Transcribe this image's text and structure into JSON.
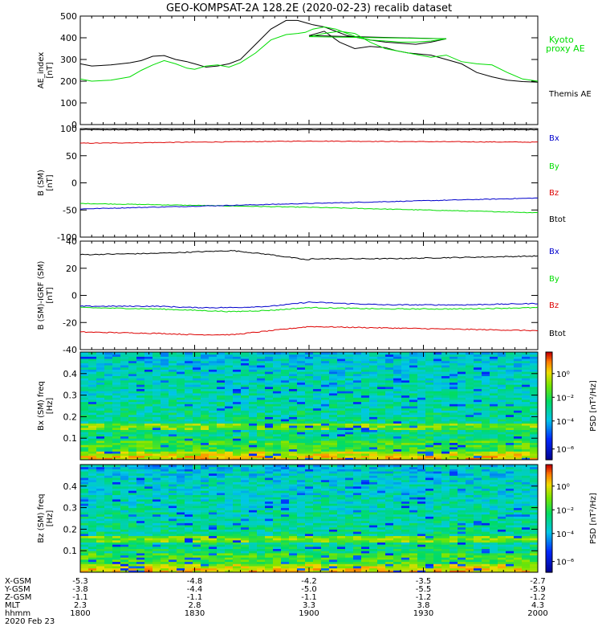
{
  "title": "GEO-KOMPSAT-2A 128.2E (2020-02-23) recalib dataset",
  "colors": {
    "black": "#000000",
    "green": "#00dd00",
    "red": "#dd0000",
    "blue": "#0000cc"
  },
  "chart_data": [
    {
      "type": "line",
      "ylabel": "AE_index [nT]",
      "ylim": [
        0,
        500
      ],
      "yticks": [
        0,
        100,
        200,
        300,
        400,
        500
      ],
      "series": [
        {
          "name": "Themis AE",
          "color": "black",
          "x": [
            1800,
            1803,
            1808,
            1813,
            1816,
            1819,
            1822,
            1825,
            1828,
            1829,
            1830,
            1833,
            1836,
            1839,
            1842,
            1846,
            1850,
            1854,
            1857,
            1859,
            1861,
            1864,
            1867,
            1870,
            1873,
            1876,
            1880,
            1884,
            1888,
            1892,
            1896,
            1900,
            1904,
            1908,
            1912,
            1916,
            1920,
            1923,
            1926,
            1929,
            1932,
            1936,
            1940,
            1944,
            1948,
            1952,
            1956,
            1960,
            2000
          ],
          "values": [
            280,
            270,
            275,
            285,
            295,
            315,
            318,
            300,
            290,
            285,
            280,
            265,
            270,
            280,
            300,
            370,
            440,
            480,
            480,
            470,
            460,
            450,
            430,
            410,
            400,
            390,
            380,
            375,
            370,
            380,
            395,
            410,
            430,
            380,
            350,
            360,
            355,
            340,
            330,
            325,
            320,
            300,
            280,
            240,
            220,
            205,
            198,
            195,
            195
          ]
        },
        {
          "name": "Kyoto proxy AE",
          "color": "green",
          "x": [
            1800,
            1803,
            1808,
            1813,
            1816,
            1819,
            1822,
            1825,
            1828,
            1830,
            1833,
            1836,
            1839,
            1842,
            1846,
            1850,
            1854,
            1857,
            1859,
            1861,
            1864,
            1867,
            1870,
            1873,
            1876,
            1880,
            1884,
            1888,
            1892,
            1896,
            1900,
            1904,
            1908,
            1912,
            1916,
            1920,
            1923,
            1926,
            1929,
            1932,
            1936,
            1940,
            1944,
            1948,
            1952,
            1956,
            1960,
            2000
          ],
          "values": [
            210,
            200,
            205,
            220,
            250,
            275,
            295,
            280,
            260,
            255,
            270,
            275,
            265,
            285,
            330,
            390,
            415,
            420,
            425,
            440,
            450,
            440,
            420,
            400,
            390,
            385,
            380,
            380,
            385,
            395,
            405,
            420,
            430,
            420,
            380,
            350,
            340,
            330,
            320,
            310,
            320,
            290,
            280,
            275,
            240,
            210,
            200,
            200
          ]
        }
      ]
    },
    {
      "type": "line",
      "ylabel": "B (SM) [nT]",
      "ylim": [
        -100,
        100
      ],
      "yticks": [
        -100,
        -50,
        0,
        50,
        100
      ],
      "series": [
        {
          "name": "Btot",
          "color": "black",
          "x": [
            1800,
            2000
          ],
          "values": [
            98,
            98
          ]
        },
        {
          "name": "Bz",
          "color": "red",
          "x": [
            1800,
            1900,
            2000
          ],
          "values": [
            73,
            77,
            75
          ]
        },
        {
          "name": "By",
          "color": "green",
          "x": [
            1800,
            1900,
            2000
          ],
          "values": [
            -38,
            -45,
            -55
          ]
        },
        {
          "name": "Bx",
          "color": "blue",
          "x": [
            1800,
            1900,
            2000
          ],
          "values": [
            -48,
            -38,
            -28
          ]
        }
      ]
    },
    {
      "type": "line",
      "ylabel": "B (SM)-IGRF (SM) [nT]",
      "ylim": [
        -40,
        40
      ],
      "yticks": [
        -40,
        -20,
        0,
        20,
        40
      ],
      "series": [
        {
          "name": "Btot",
          "color": "black",
          "x": [
            1800,
            1820,
            1830,
            1840,
            1850,
            1860,
            1900,
            1920,
            1940,
            1960,
            2000
          ],
          "values": [
            30,
            31,
            32,
            33,
            30,
            26,
            27,
            27,
            28,
            29,
            30
          ]
        },
        {
          "name": "Bz",
          "color": "red",
          "x": [
            1800,
            1820,
            1830,
            1840,
            1850,
            1860,
            1900,
            1920,
            1940,
            1960,
            2000
          ],
          "values": [
            -27,
            -28,
            -29,
            -29,
            -26,
            -23,
            -23,
            -24,
            -25,
            -26,
            -26
          ]
        },
        {
          "name": "By",
          "color": "green",
          "x": [
            1800,
            1820,
            1830,
            1840,
            1850,
            1860,
            1900,
            1920,
            1940,
            1960,
            2000
          ],
          "values": [
            -9,
            -10,
            -11,
            -12,
            -11,
            -9,
            -9,
            -10,
            -10,
            -9,
            -9
          ]
        },
        {
          "name": "Bx",
          "color": "blue",
          "x": [
            1800,
            1820,
            1830,
            1840,
            1850,
            1860,
            1900,
            1920,
            1940,
            1960,
            2000
          ],
          "values": [
            -8,
            -8,
            -9,
            -9,
            -8,
            -5,
            -5,
            -7,
            -7,
            -6,
            -5
          ]
        }
      ]
    },
    {
      "type": "heatmap",
      "ylabel": "Bx (SM) freq [Hz]",
      "ylim": [
        0,
        0.5
      ],
      "yticks": [
        0.1,
        0.2,
        0.3,
        0.4
      ],
      "colorbar_label": "PSD [nT²/Hz]",
      "colorbar_ticks": [
        "10⁰",
        "10⁻²",
        "10⁻⁴",
        "10⁻⁶"
      ]
    },
    {
      "type": "heatmap",
      "ylabel": "Bz (SM) freq [Hz]",
      "ylim": [
        0,
        0.5
      ],
      "yticks": [
        0.1,
        0.2,
        0.3,
        0.4
      ],
      "colorbar_label": "PSD [nT²/Hz]",
      "colorbar_ticks": [
        "10⁰",
        "10⁻²",
        "10⁻⁴",
        "10⁻⁶"
      ]
    }
  ],
  "legend": {
    "ae": [
      "Kyoto\nproxy AE",
      "Themis AE"
    ],
    "b": [
      "Bx",
      "By",
      "Bz",
      "Btot"
    ]
  },
  "xaxis": {
    "row_labels": [
      "X-GSM",
      "Y-GSM",
      "Z-GSM",
      "MLT",
      "hhmm",
      "2020 Feb 23"
    ],
    "columns": [
      {
        "x_gsm": "-5.3",
        "y_gsm": "-3.8",
        "z_gsm": "-1.1",
        "mlt": "2.3",
        "hhmm": "1800"
      },
      {
        "x_gsm": "-4.8",
        "y_gsm": "-4.4",
        "z_gsm": "-1.1",
        "mlt": "2.8",
        "hhmm": "1830"
      },
      {
        "x_gsm": "-4.2",
        "y_gsm": "-5.0",
        "z_gsm": "-1.1",
        "mlt": "3.3",
        "hhmm": "1900"
      },
      {
        "x_gsm": "-3.5",
        "y_gsm": "-5.5",
        "z_gsm": "-1.2",
        "mlt": "3.8",
        "hhmm": "1930"
      },
      {
        "x_gsm": "-2.7",
        "y_gsm": "-5.9",
        "z_gsm": "-1.2",
        "mlt": "4.3",
        "hhmm": "2000"
      }
    ]
  }
}
